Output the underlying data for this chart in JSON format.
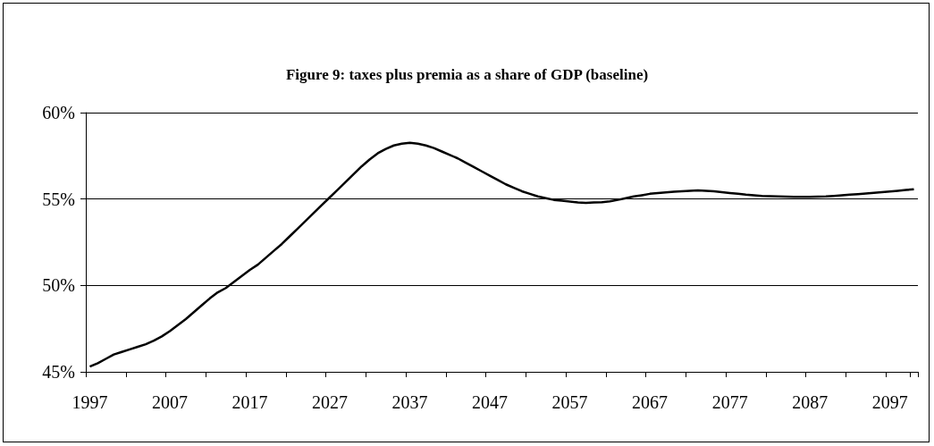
{
  "chart_data": {
    "type": "line",
    "title": "Figure 9: taxes plus premia as a share of GDP (baseline)",
    "categories": [
      "1997",
      null,
      null,
      null,
      null,
      null,
      null,
      null,
      null,
      null,
      "2007",
      null,
      null,
      null,
      null,
      null,
      null,
      null,
      null,
      null,
      "2017",
      null,
      null,
      null,
      null,
      null,
      null,
      null,
      null,
      null,
      "2027",
      null,
      null,
      null,
      null,
      null,
      null,
      null,
      null,
      null,
      "2037",
      null,
      null,
      null,
      null,
      null,
      null,
      null,
      null,
      null,
      "2047",
      null,
      null,
      null,
      null,
      null,
      null,
      null,
      null,
      null,
      "2057",
      null,
      null,
      null,
      null,
      null,
      null,
      null,
      null,
      null,
      "2067",
      null,
      null,
      null,
      null,
      null,
      null,
      null,
      null,
      null,
      "2077",
      null,
      null,
      null,
      null,
      null,
      null,
      null,
      null,
      null,
      "2087",
      null,
      null,
      null,
      null,
      null,
      null,
      null,
      null,
      null,
      "2097",
      null,
      null,
      null
    ],
    "series": [
      {
        "color": "#000000",
        "values": [
          45.3,
          45.5,
          45.75,
          46.0,
          46.15,
          46.3,
          46.45,
          46.6,
          46.8,
          47.05,
          47.35,
          47.7,
          48.05,
          48.45,
          48.85,
          49.25,
          49.6,
          49.85,
          50.2,
          50.55,
          50.9,
          51.2,
          51.6,
          52.0,
          52.4,
          52.85,
          53.3,
          53.75,
          54.2,
          54.65,
          55.1,
          55.55,
          56.0,
          56.45,
          56.9,
          57.3,
          57.65,
          57.9,
          58.1,
          58.2,
          58.25,
          58.2,
          58.1,
          57.95,
          57.75,
          57.55,
          57.35,
          57.1,
          56.85,
          56.6,
          56.35,
          56.1,
          55.85,
          55.65,
          55.45,
          55.3,
          55.15,
          55.05,
          54.95,
          54.9,
          54.85,
          54.8,
          54.78,
          54.8,
          54.82,
          54.87,
          54.95,
          55.05,
          55.15,
          55.22,
          55.3,
          55.35,
          55.38,
          55.42,
          55.45,
          55.48,
          55.5,
          55.48,
          55.45,
          55.4,
          55.35,
          55.3,
          55.25,
          55.22,
          55.18,
          55.16,
          55.15,
          55.14,
          55.13,
          55.13,
          55.13,
          55.14,
          55.15,
          55.18,
          55.22,
          55.25,
          55.28,
          55.32,
          55.36,
          55.4,
          55.44,
          55.48,
          55.52,
          55.57
        ]
      }
    ],
    "ylim": [
      45,
      60
    ],
    "yticks": [
      {
        "value": 45,
        "label": "45%"
      },
      {
        "value": 50,
        "label": "50%"
      },
      {
        "value": 55,
        "label": "55%"
      },
      {
        "value": 60,
        "label": "60%"
      }
    ],
    "grid": "y",
    "marker": "none"
  }
}
